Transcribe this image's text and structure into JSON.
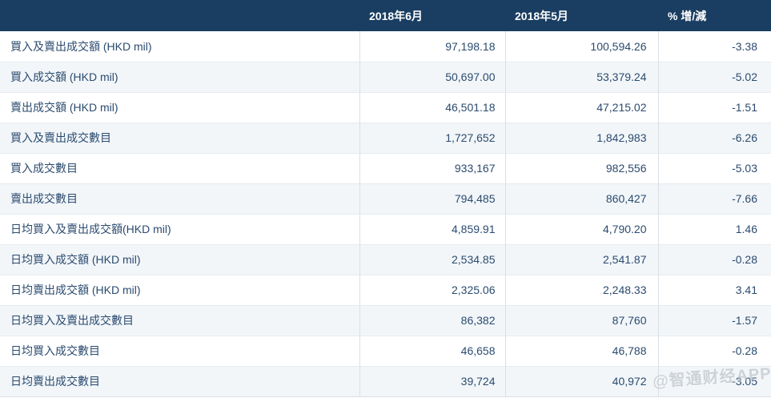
{
  "chart_data": {
    "type": "table",
    "columns": [
      "",
      "2018年6月",
      "2018年5月",
      "% 增/減"
    ],
    "rows": [
      [
        "買入及賣出成交額 (HKD mil)",
        "97,198.18",
        "100,594.26",
        "-3.38"
      ],
      [
        "買入成交額 (HKD mil)",
        "50,697.00",
        "53,379.24",
        "-5.02"
      ],
      [
        "賣出成交額 (HKD mil)",
        "46,501.18",
        "47,215.02",
        "-1.51"
      ],
      [
        "買入及賣出成交數目",
        "1,727,652",
        "1,842,983",
        "-6.26"
      ],
      [
        "買入成交數目",
        "933,167",
        "982,556",
        "-5.03"
      ],
      [
        "賣出成交數目",
        "794,485",
        "860,427",
        "-7.66"
      ],
      [
        "日均買入及賣出成交額(HKD mil)",
        "4,859.91",
        "4,790.20",
        "1.46"
      ],
      [
        "日均買入成交額 (HKD mil)",
        "2,534.85",
        "2,541.87",
        "-0.28"
      ],
      [
        "日均賣出成交額 (HKD mil)",
        "2,325.06",
        "2,248.33",
        "3.41"
      ],
      [
        "日均買入及賣出成交數目",
        "86,382",
        "87,760",
        "-1.57"
      ],
      [
        "日均買入成交數目",
        "46,658",
        "46,788",
        "-0.28"
      ],
      [
        "日均賣出成交數目",
        "39,724",
        "40,972",
        "-3.05"
      ]
    ]
  },
  "watermark": {
    "text": "@智通财经APP"
  },
  "colors": {
    "header_bg": "#1a3e62",
    "header_text": "#ffffff",
    "body_text": "#2b4b6f",
    "row_alt_bg": "#f2f6f9",
    "border": "#d9dfe4",
    "watermark": "#b7bdc4"
  }
}
